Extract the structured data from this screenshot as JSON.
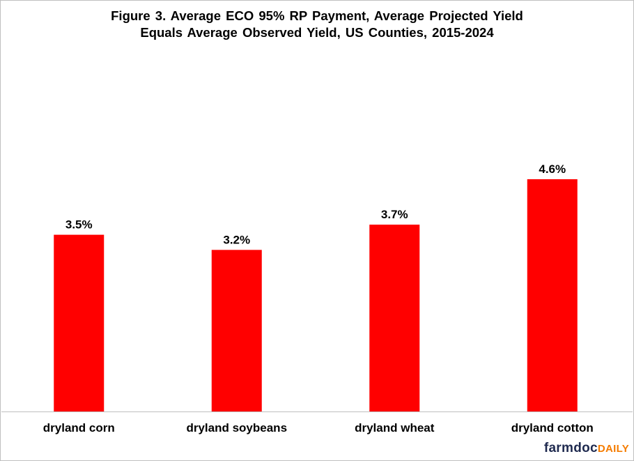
{
  "chart_data": {
    "type": "bar",
    "title": "Figure  3.  Average  ECO 95%  RP Payment,  Average  Projected Yield\nEquals  Average  Observed  Yield,  US Counties,  2015-2024",
    "categories": [
      "dryland corn",
      "dryland soybeans",
      "dryland wheat",
      "dryland cotton"
    ],
    "values": [
      3.5,
      3.2,
      3.7,
      4.6
    ],
    "data_labels": [
      "3.5%",
      "3.2%",
      "3.7%",
      "4.6%"
    ],
    "unit": "%",
    "xlabel": "",
    "ylabel": "",
    "ylim": [
      0,
      5
    ],
    "grid": false,
    "legend": "none",
    "bar_color": "#ff0000"
  },
  "logo": {
    "part1": "farmdoc",
    "part2": "DAILY",
    "color1": "#1f2a4f",
    "color2": "#f57c00"
  }
}
